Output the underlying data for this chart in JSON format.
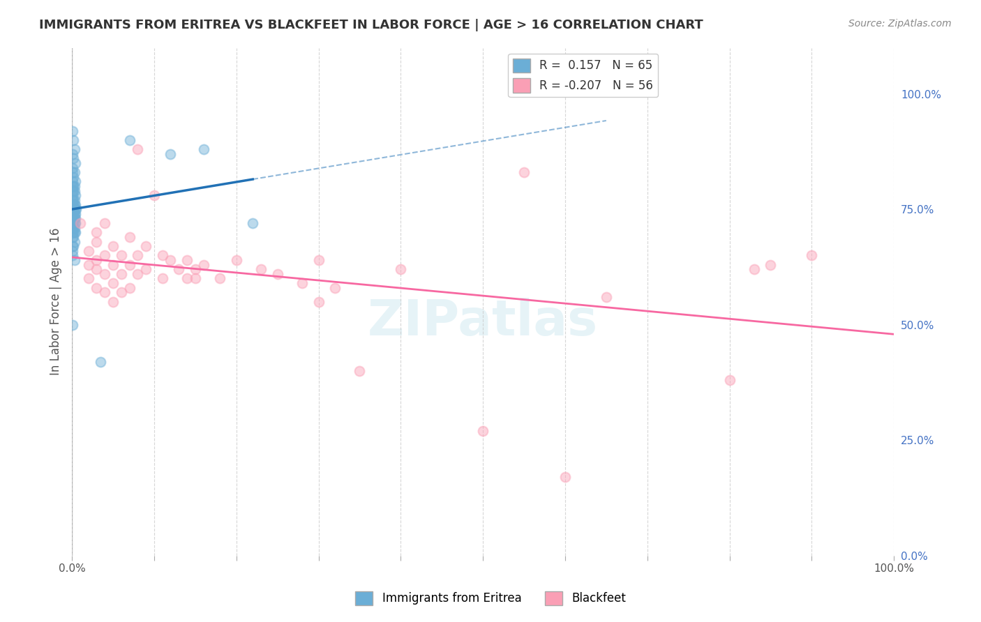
{
  "title": "IMMIGRANTS FROM ERITREA VS BLACKFEET IN LABOR FORCE | AGE > 16 CORRELATION CHART",
  "source": "Source: ZipAtlas.com",
  "xlabel": "",
  "ylabel": "In Labor Force | Age > 16",
  "xlim": [
    0.0,
    1.0
  ],
  "ylim": [
    0.0,
    1.1
  ],
  "right_yticks": [
    0.0,
    0.25,
    0.5,
    0.75,
    1.0
  ],
  "right_yticklabels": [
    "0.0%",
    "25.0%",
    "50.0%",
    "75.0%",
    "100.0%"
  ],
  "legend_blue_r": "0.157",
  "legend_blue_n": "65",
  "legend_pink_r": "-0.207",
  "legend_pink_n": "56",
  "blue_color": "#6baed6",
  "pink_color": "#fa9fb5",
  "blue_line_color": "#2171b5",
  "pink_line_color": "#f768a1",
  "blue_scatter": [
    [
      0.001,
      0.92
    ],
    [
      0.002,
      0.9
    ],
    [
      0.003,
      0.88
    ],
    [
      0.001,
      0.87
    ],
    [
      0.002,
      0.86
    ],
    [
      0.004,
      0.85
    ],
    [
      0.001,
      0.84
    ],
    [
      0.001,
      0.83
    ],
    [
      0.003,
      0.83
    ],
    [
      0.002,
      0.82
    ],
    [
      0.001,
      0.81
    ],
    [
      0.004,
      0.81
    ],
    [
      0.001,
      0.8
    ],
    [
      0.002,
      0.8
    ],
    [
      0.003,
      0.8
    ],
    [
      0.001,
      0.79
    ],
    [
      0.002,
      0.79
    ],
    [
      0.003,
      0.79
    ],
    [
      0.004,
      0.78
    ],
    [
      0.001,
      0.78
    ],
    [
      0.001,
      0.77
    ],
    [
      0.002,
      0.77
    ],
    [
      0.003,
      0.77
    ],
    [
      0.001,
      0.76
    ],
    [
      0.002,
      0.76
    ],
    [
      0.003,
      0.76
    ],
    [
      0.004,
      0.76
    ],
    [
      0.001,
      0.75
    ],
    [
      0.002,
      0.75
    ],
    [
      0.003,
      0.75
    ],
    [
      0.004,
      0.75
    ],
    [
      0.005,
      0.75
    ],
    [
      0.001,
      0.74
    ],
    [
      0.002,
      0.74
    ],
    [
      0.003,
      0.74
    ],
    [
      0.004,
      0.74
    ],
    [
      0.001,
      0.73
    ],
    [
      0.002,
      0.73
    ],
    [
      0.003,
      0.73
    ],
    [
      0.004,
      0.73
    ],
    [
      0.001,
      0.72
    ],
    [
      0.002,
      0.72
    ],
    [
      0.003,
      0.72
    ],
    [
      0.004,
      0.72
    ],
    [
      0.001,
      0.71
    ],
    [
      0.002,
      0.71
    ],
    [
      0.003,
      0.71
    ],
    [
      0.001,
      0.7
    ],
    [
      0.002,
      0.7
    ],
    [
      0.003,
      0.7
    ],
    [
      0.004,
      0.7
    ],
    [
      0.001,
      0.69
    ],
    [
      0.002,
      0.69
    ],
    [
      0.003,
      0.68
    ],
    [
      0.001,
      0.67
    ],
    [
      0.002,
      0.67
    ],
    [
      0.001,
      0.66
    ],
    [
      0.001,
      0.65
    ],
    [
      0.003,
      0.64
    ],
    [
      0.001,
      0.5
    ],
    [
      0.07,
      0.9
    ],
    [
      0.12,
      0.87
    ],
    [
      0.16,
      0.88
    ],
    [
      0.035,
      0.42
    ],
    [
      0.22,
      0.72
    ]
  ],
  "pink_scatter": [
    [
      0.01,
      0.72
    ],
    [
      0.02,
      0.66
    ],
    [
      0.02,
      0.63
    ],
    [
      0.02,
      0.6
    ],
    [
      0.03,
      0.7
    ],
    [
      0.03,
      0.68
    ],
    [
      0.03,
      0.64
    ],
    [
      0.03,
      0.62
    ],
    [
      0.03,
      0.58
    ],
    [
      0.04,
      0.72
    ],
    [
      0.04,
      0.65
    ],
    [
      0.04,
      0.61
    ],
    [
      0.04,
      0.57
    ],
    [
      0.05,
      0.67
    ],
    [
      0.05,
      0.63
    ],
    [
      0.05,
      0.59
    ],
    [
      0.05,
      0.55
    ],
    [
      0.06,
      0.65
    ],
    [
      0.06,
      0.61
    ],
    [
      0.06,
      0.57
    ],
    [
      0.07,
      0.69
    ],
    [
      0.07,
      0.63
    ],
    [
      0.07,
      0.58
    ],
    [
      0.08,
      0.88
    ],
    [
      0.08,
      0.65
    ],
    [
      0.08,
      0.61
    ],
    [
      0.09,
      0.67
    ],
    [
      0.09,
      0.62
    ],
    [
      0.1,
      0.78
    ],
    [
      0.11,
      0.65
    ],
    [
      0.11,
      0.6
    ],
    [
      0.12,
      0.64
    ],
    [
      0.13,
      0.62
    ],
    [
      0.14,
      0.64
    ],
    [
      0.14,
      0.6
    ],
    [
      0.15,
      0.62
    ],
    [
      0.15,
      0.6
    ],
    [
      0.16,
      0.63
    ],
    [
      0.18,
      0.6
    ],
    [
      0.2,
      0.64
    ],
    [
      0.23,
      0.62
    ],
    [
      0.25,
      0.61
    ],
    [
      0.28,
      0.59
    ],
    [
      0.3,
      0.64
    ],
    [
      0.3,
      0.55
    ],
    [
      0.32,
      0.58
    ],
    [
      0.35,
      0.4
    ],
    [
      0.4,
      0.62
    ],
    [
      0.5,
      0.27
    ],
    [
      0.55,
      0.83
    ],
    [
      0.6,
      0.17
    ],
    [
      0.65,
      0.56
    ],
    [
      0.8,
      0.38
    ],
    [
      0.83,
      0.62
    ],
    [
      0.85,
      0.63
    ],
    [
      0.9,
      0.65
    ]
  ],
  "watermark": "ZIPatlas",
  "background_color": "#ffffff",
  "grid_color": "#cccccc"
}
